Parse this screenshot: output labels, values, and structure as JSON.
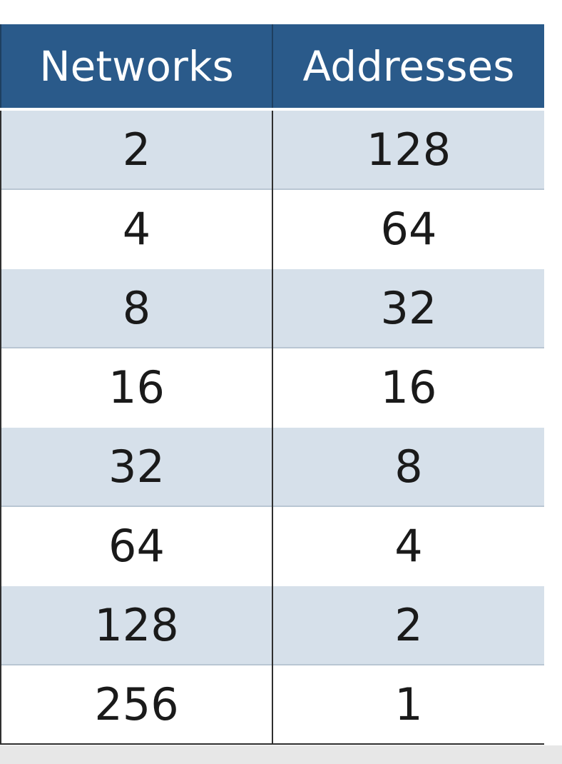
{
  "table": {
    "headers": [
      "Networks",
      "Addresses"
    ],
    "rows": [
      {
        "networks": "2",
        "addresses": "128"
      },
      {
        "networks": "4",
        "addresses": "64"
      },
      {
        "networks": "8",
        "addresses": "32"
      },
      {
        "networks": "16",
        "addresses": "16"
      },
      {
        "networks": "32",
        "addresses": "8"
      },
      {
        "networks": "64",
        "addresses": "4"
      },
      {
        "networks": "128",
        "addresses": "2"
      },
      {
        "networks": "256",
        "addresses": "1"
      }
    ]
  },
  "colors": {
    "header_bg": "#2a5a8a",
    "header_text": "#ffffff",
    "shaded_row": "#d6e0ea",
    "plain_row": "#ffffff",
    "cell_text": "#1a1a1a"
  }
}
